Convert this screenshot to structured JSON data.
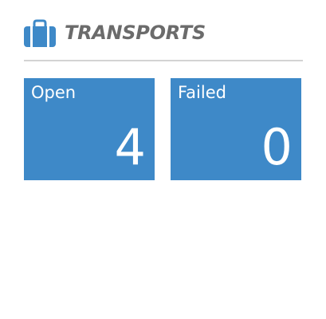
{
  "widget": {
    "title": "TRANSPORTS",
    "icon": "briefcase-icon",
    "accent_color": "#3e89c8",
    "title_color": "#6b6b6b"
  },
  "tiles": [
    {
      "label": "Open",
      "value": "4"
    },
    {
      "label": "Failed",
      "value": "0"
    }
  ]
}
